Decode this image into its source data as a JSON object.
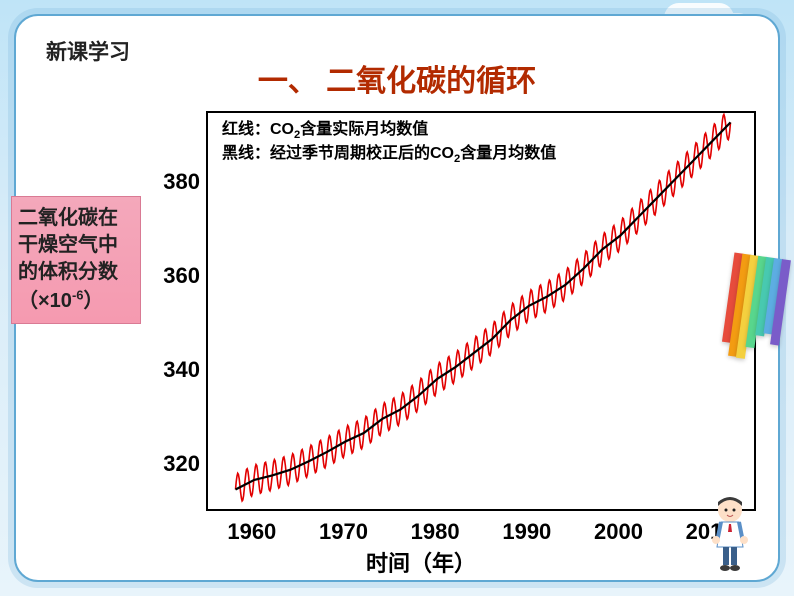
{
  "section_label": "新课学习",
  "title": "一、 二氧化碳的循环",
  "y_axis_label_html": "二氧化碳在干燥空气中的体积分数（×10<sup>-6</sup>）",
  "x_axis_label": "时间（年）",
  "legend_html": "红线：CO<sub>2</sub>含量实际月均数值<br>黑线：经过季节周期校正后的CO<sub>2</sub>含量月均数值",
  "chart": {
    "type": "line",
    "xlim": [
      1955,
      2015
    ],
    "ylim": [
      310,
      395
    ],
    "yticks": [
      320,
      340,
      360,
      380
    ],
    "xticks": [
      1960,
      1970,
      1980,
      1990,
      2000,
      2010
    ],
    "background_color": "#ffffff",
    "border_color": "#000000",
    "border_width": 2,
    "label_fontsize": 22,
    "legend_fontsize": 16,
    "black_line": {
      "color": "#000000",
      "width": 2.2,
      "points": [
        [
          1958,
          315
        ],
        [
          1960,
          317
        ],
        [
          1962,
          318
        ],
        [
          1964,
          319.2
        ],
        [
          1966,
          321
        ],
        [
          1968,
          323
        ],
        [
          1970,
          325.2
        ],
        [
          1972,
          327
        ],
        [
          1974,
          330
        ],
        [
          1976,
          332
        ],
        [
          1978,
          335
        ],
        [
          1980,
          338.5
        ],
        [
          1982,
          341
        ],
        [
          1984,
          344
        ],
        [
          1986,
          347
        ],
        [
          1988,
          351
        ],
        [
          1990,
          354
        ],
        [
          1992,
          356
        ],
        [
          1994,
          358.5
        ],
        [
          1996,
          362
        ],
        [
          1998,
          366
        ],
        [
          2000,
          369
        ],
        [
          2002,
          373
        ],
        [
          2004,
          377
        ],
        [
          2006,
          381
        ],
        [
          2008,
          385
        ],
        [
          2010,
          389
        ],
        [
          2012,
          393
        ]
      ]
    },
    "red_line": {
      "color": "#e20000",
      "width": 1.6,
      "amplitude": 3.2,
      "cycles_per_decade": 10
    }
  },
  "deco_bar_colors": [
    "#e74c3c",
    "#f39c12",
    "#f4d03f",
    "#58d68d",
    "#48c9b0",
    "#5dade2",
    "#7a5cc9"
  ]
}
